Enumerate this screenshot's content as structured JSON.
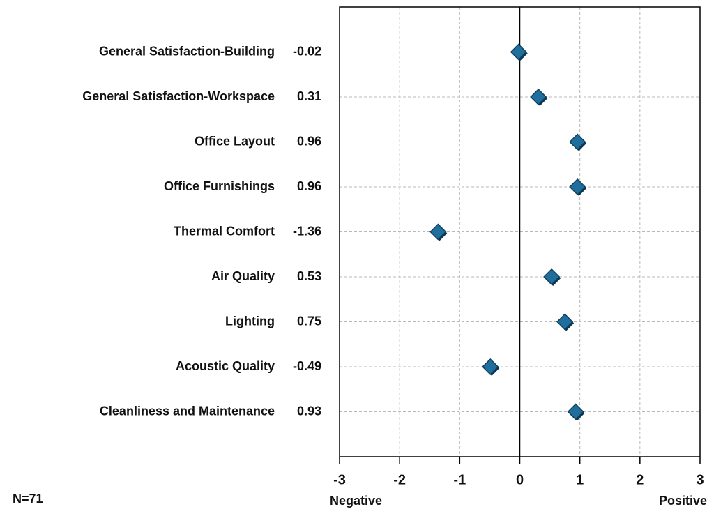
{
  "chart_data": {
    "type": "dot",
    "categories": [
      "General Satisfaction-Building",
      "General Satisfaction-Workspace",
      "Office Layout",
      "Office Furnishings",
      "Thermal Comfort",
      "Air Quality",
      "Lighting",
      "Acoustic Quality",
      "Cleanliness and Maintenance"
    ],
    "values": [
      -0.02,
      0.31,
      0.96,
      0.96,
      -1.36,
      0.53,
      0.75,
      -0.49,
      0.93
    ],
    "color": "#1f6e9c",
    "xlim": [
      -3,
      3
    ],
    "xticks": [
      -3,
      -2,
      -1,
      0,
      1,
      2,
      3
    ],
    "grid": true,
    "axis_end_labels": [
      "Negative",
      "Positive"
    ],
    "annotation": "N=71"
  }
}
